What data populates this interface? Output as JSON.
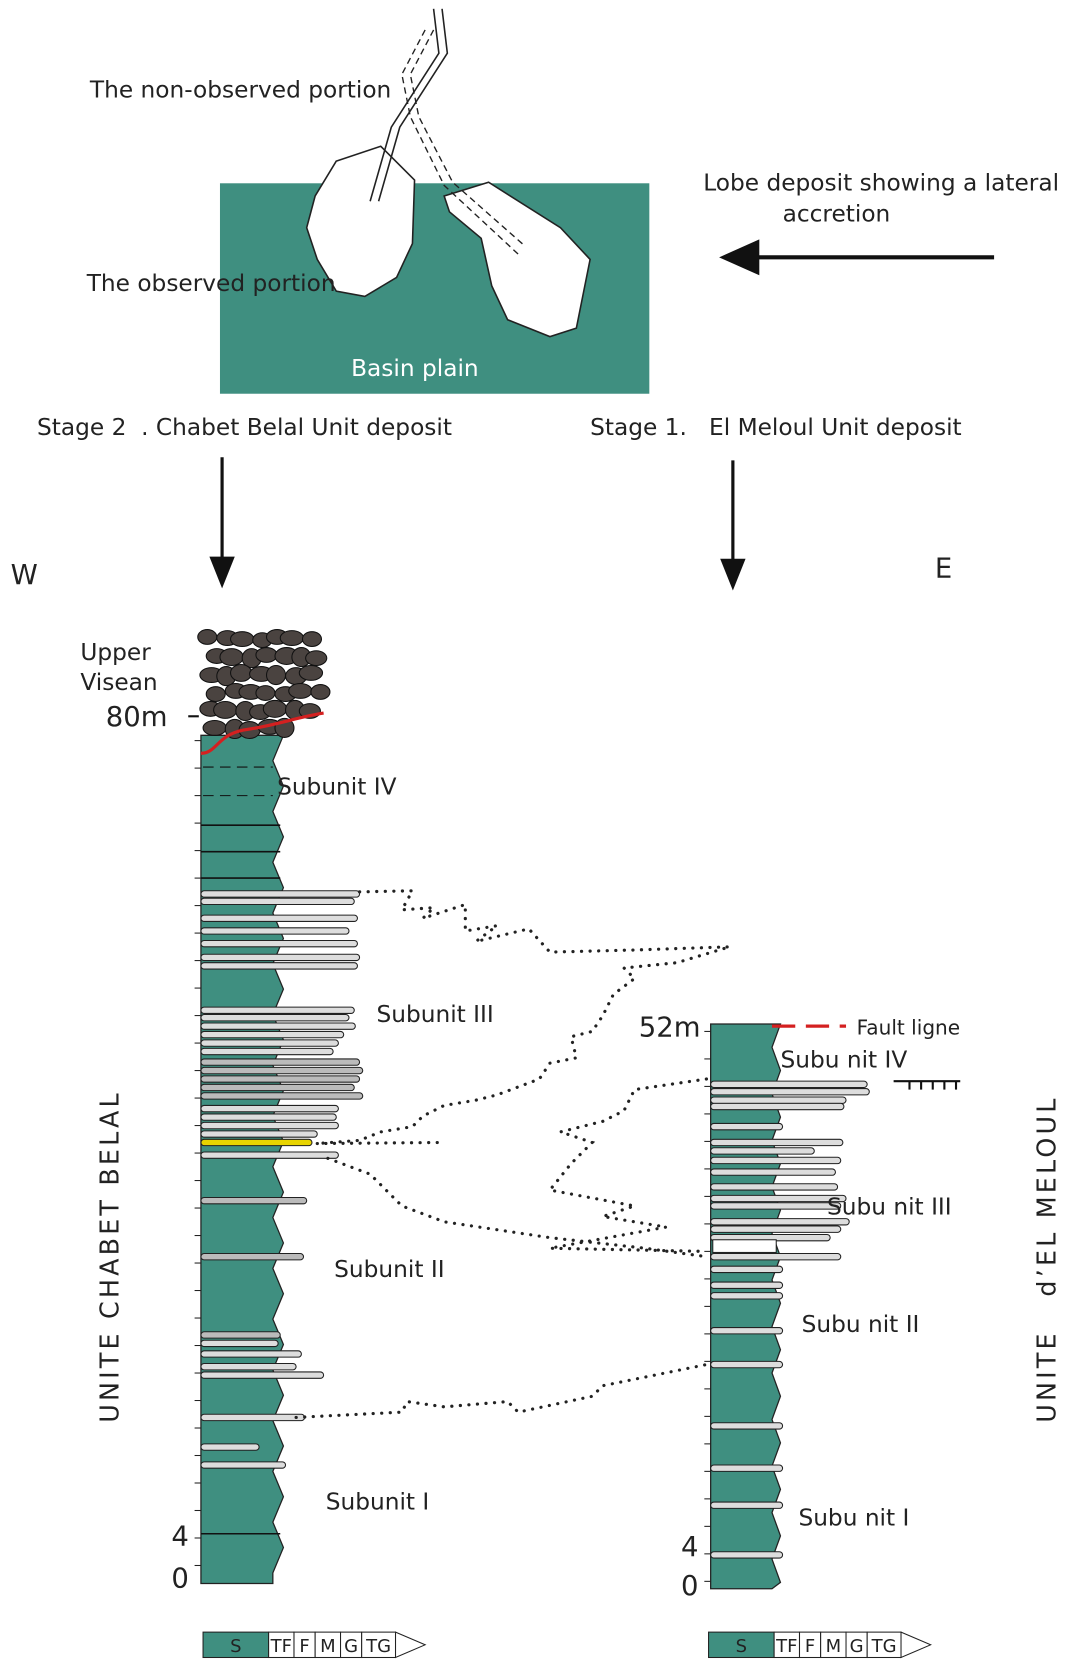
{
  "top": {
    "non_observed": "The non-observed portion",
    "observed": "The observed portion",
    "basin": "Basin plain",
    "lobe": [
      "Lobe deposit showing a lateral",
      "accretion"
    ],
    "stage2": "Stage 2  . Chabet Belal Unit deposit",
    "stage1": "Stage 1.   El Meloul Unit deposit"
  },
  "directions": {
    "west": "W",
    "east": "E"
  },
  "left_column": {
    "title": "UNITE CHABET BELAL",
    "age": [
      "Upper",
      "Visean"
    ],
    "depths": [
      "80m",
      "4",
      "0"
    ],
    "subunits": [
      "Subunit IV",
      "Subunit III",
      "Subunit II",
      "Subunit I"
    ]
  },
  "right_column": {
    "title": "UNITE   d’EL MELOUL",
    "depths": [
      "52m",
      "4",
      "0"
    ],
    "fault": "Fault ligne",
    "subunits": [
      "Subu nit IV",
      "Subu nit III",
      "Subu nit II",
      "Subu nit I"
    ]
  },
  "grain_scale": [
    "S",
    "TF",
    "F",
    "M",
    "G",
    "TG"
  ]
}
